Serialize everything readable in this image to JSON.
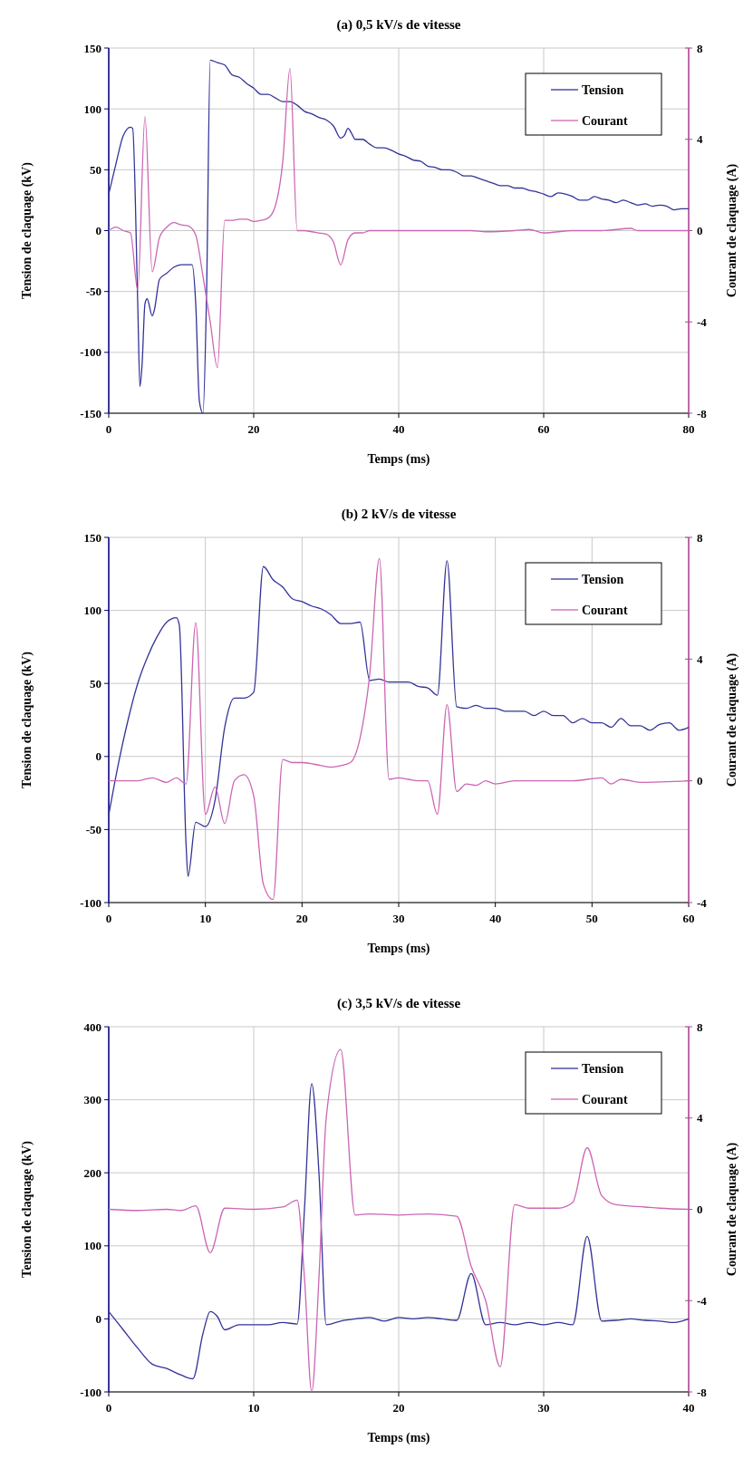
{
  "chart_data": [
    {
      "type": "line",
      "title": "(a) 0,5 kV/s de vitesse",
      "xlabel": "Temps (ms)",
      "ylabel": "Tension de claquage (kV)",
      "y2label": "Courant de claquage (A)",
      "xlim": [
        0,
        80
      ],
      "xticks": [
        0,
        20,
        40,
        60,
        80
      ],
      "ylim": [
        -150,
        150
      ],
      "yticks": [
        -150,
        -100,
        -50,
        0,
        50,
        100,
        150
      ],
      "y2lim": [
        -8,
        8
      ],
      "y2ticks": [
        -8,
        -4,
        0,
        4,
        8
      ],
      "grid": true,
      "legend": "top right",
      "series": [
        {
          "name": "Tension",
          "color": "#333399",
          "x": [
            0,
            1,
            2,
            3,
            3.3,
            4,
            4.3,
            4.6,
            5,
            5.3,
            6,
            6.3,
            7,
            8,
            9,
            10,
            11.5,
            12,
            12.5,
            13,
            13.5,
            14,
            15,
            16,
            17,
            18,
            19,
            20,
            21,
            22,
            23,
            24,
            25,
            26,
            27,
            28,
            29,
            30,
            31,
            32,
            32.5,
            33,
            33.5,
            34,
            35,
            36,
            37,
            38,
            39,
            40,
            41,
            42,
            43,
            44,
            45,
            46,
            47,
            48,
            49,
            50,
            51,
            52,
            53,
            54,
            55,
            56,
            57,
            58,
            59,
            60,
            61,
            62,
            63,
            64,
            65,
            66,
            67,
            68,
            69,
            70,
            71,
            72,
            73,
            74,
            75,
            76,
            77,
            78,
            79,
            80
          ],
          "values": [
            30,
            55,
            78,
            85,
            84,
            -60,
            -128,
            -110,
            -60,
            -56,
            -70,
            -65,
            -40,
            -35,
            -30,
            -28,
            -28,
            -60,
            -140,
            -150,
            -50,
            140,
            138,
            136,
            128,
            126,
            121,
            117,
            112,
            112,
            109,
            106,
            106,
            103,
            98,
            96,
            93,
            91,
            86,
            76,
            78,
            84,
            80,
            75,
            75,
            71,
            68,
            68,
            66,
            63,
            61,
            58,
            57,
            53,
            52,
            50,
            50,
            48,
            45,
            45,
            43,
            41,
            39,
            37,
            37,
            35,
            35,
            33,
            32,
            30,
            28,
            31,
            30,
            28,
            25,
            25,
            28,
            26,
            25,
            23,
            25,
            23,
            21,
            22,
            20,
            21,
            20,
            17,
            18,
            18
          ]
        },
        {
          "name": "Courant",
          "color": "#cc66b3",
          "axis": "y2",
          "x": [
            0,
            1,
            2,
            3,
            4,
            5,
            6,
            7,
            8,
            9,
            10,
            11,
            12,
            13,
            14,
            15,
            16,
            17,
            18,
            19,
            20,
            21,
            22,
            23,
            24,
            25,
            26,
            27,
            28,
            29,
            30,
            31,
            32,
            33,
            34,
            35,
            36,
            40,
            44,
            48,
            50,
            52,
            56,
            58,
            60,
            64,
            68,
            72,
            73,
            76,
            80
          ],
          "values": [
            0,
            0.15,
            0,
            -0.1,
            -2.6,
            5,
            -1.8,
            -0.3,
            0.15,
            0.35,
            0.25,
            0.2,
            -0.2,
            -2,
            -4,
            -6,
            0.45,
            0.45,
            0.5,
            0.5,
            0.4,
            0.45,
            0.55,
            1.1,
            3,
            7.1,
            0,
            0,
            -0.05,
            -0.1,
            -0.15,
            -0.5,
            -1.5,
            -0.4,
            -0.1,
            -0.1,
            0,
            0,
            0,
            0,
            0,
            -0.05,
            0,
            0.05,
            -0.1,
            0,
            0,
            0.1,
            0,
            0,
            0
          ]
        }
      ]
    },
    {
      "type": "line",
      "title": "(b) 2 kV/s de vitesse",
      "xlabel": "Temps (ms)",
      "ylabel": "Tension de claquage (kV)",
      "y2label": "Courant de claquage (A)",
      "xlim": [
        0,
        60
      ],
      "xticks": [
        0,
        10,
        20,
        30,
        40,
        50,
        60
      ],
      "ylim": [
        -100,
        150
      ],
      "yticks": [
        -100,
        -50,
        0,
        50,
        100,
        150
      ],
      "y2lim": [
        -4,
        8
      ],
      "y2ticks": [
        -4,
        0,
        4,
        8
      ],
      "grid": true,
      "legend": "top right",
      "series": [
        {
          "name": "Tension",
          "color": "#333399",
          "x": [
            0,
            1,
            2,
            3,
            4,
            5,
            6,
            7,
            7.3,
            8,
            8.2,
            9,
            10,
            11,
            12,
            13,
            14,
            15,
            16,
            17,
            18,
            19,
            20,
            21,
            22,
            23,
            24,
            25,
            26,
            27,
            28,
            29,
            30,
            31,
            32,
            33,
            34,
            35,
            36,
            37,
            38,
            39,
            40,
            41,
            42,
            43,
            44,
            45,
            46,
            47,
            48,
            49,
            50,
            51,
            52,
            53,
            54,
            55,
            56,
            57,
            58,
            59,
            60
          ],
          "values": [
            -40,
            -5,
            25,
            50,
            68,
            82,
            92,
            95,
            90,
            -60,
            -82,
            -45,
            -48,
            -30,
            20,
            40,
            40,
            44,
            130,
            121,
            116,
            108,
            106,
            103,
            101,
            97,
            91,
            91,
            92,
            52,
            53,
            51,
            51,
            51,
            48,
            47,
            42,
            134,
            34,
            33,
            35,
            33,
            33,
            31,
            31,
            31,
            28,
            31,
            28,
            28,
            23,
            26,
            23,
            23,
            20,
            26,
            21,
            21,
            18,
            22,
            23,
            18,
            20
          ]
        },
        {
          "name": "Courant",
          "color": "#cc66b3",
          "axis": "y2",
          "x": [
            0,
            3,
            4.5,
            6,
            7,
            8,
            9,
            10,
            11,
            12,
            13,
            14,
            15,
            16,
            17,
            18,
            19,
            20,
            22,
            23,
            24,
            25,
            26,
            27,
            28,
            29,
            30,
            31,
            32,
            33,
            34,
            35,
            36,
            37,
            38,
            39,
            40,
            42,
            45,
            48,
            51,
            52,
            53,
            55,
            60
          ],
          "values": [
            0,
            0,
            0.1,
            -0.05,
            0.1,
            -0.1,
            5.2,
            -1.1,
            -0.2,
            -1.4,
            0,
            0.2,
            -0.5,
            -3.4,
            -3.9,
            0.7,
            0.6,
            0.6,
            0.5,
            0.45,
            0.5,
            0.6,
            1.4,
            3.5,
            7.3,
            0.05,
            0.1,
            0.05,
            0,
            0,
            -1.1,
            2.5,
            -0.35,
            -0.1,
            -0.15,
            0,
            -0.1,
            0,
            0,
            0,
            0.1,
            -0.1,
            0.05,
            -0.05,
            0
          ]
        }
      ]
    },
    {
      "type": "line",
      "title": "(c) 3,5 kV/s de vitesse",
      "xlabel": "Temps (ms)",
      "ylabel": "Tension de claquage (kV)",
      "y2label": "Courant de claquage (A)",
      "xlim": [
        0,
        40
      ],
      "xticks": [
        0,
        10,
        20,
        30,
        40
      ],
      "ylim": [
        -100,
        400
      ],
      "yticks": [
        -100,
        0,
        100,
        200,
        300,
        400
      ],
      "y2lim": [
        -8,
        8
      ],
      "y2ticks": [
        -8,
        -4,
        0,
        4,
        8
      ],
      "grid": true,
      "legend": "top right",
      "series": [
        {
          "name": "Tension",
          "color": "#333399",
          "x": [
            0,
            1,
            2,
            3,
            4,
            5,
            5.8,
            6.5,
            7,
            7.5,
            8,
            9,
            10,
            11,
            12,
            13,
            13.5,
            14,
            14.5,
            15,
            16,
            17,
            18,
            19,
            20,
            21,
            22,
            23,
            24,
            25,
            26,
            27,
            28,
            29,
            30,
            31,
            32,
            33,
            34,
            35,
            36,
            37,
            38,
            39,
            40
          ],
          "values": [
            10,
            -15,
            -40,
            -62,
            -68,
            -77,
            -82,
            -20,
            10,
            3,
            -15,
            -8,
            -8,
            -8,
            -5,
            -7,
            150,
            322,
            200,
            -8,
            -3,
            0,
            2,
            -3,
            2,
            0,
            2,
            0,
            -2,
            62,
            -8,
            -5,
            -8,
            -5,
            -8,
            -5,
            -8,
            113,
            -3,
            -2,
            0,
            -2,
            -3,
            -5,
            0
          ]
        },
        {
          "name": "Courant",
          "color": "#cc66b3",
          "axis": "y2",
          "x": [
            0,
            2,
            4,
            5,
            6,
            7,
            8,
            10,
            12,
            13,
            13.5,
            14,
            14.5,
            15,
            16,
            17,
            18,
            20,
            22,
            24,
            25,
            26,
            27,
            28,
            29,
            31,
            32,
            33,
            34,
            35,
            37,
            38,
            40
          ],
          "values": [
            0,
            -0.05,
            0,
            -0.05,
            0.15,
            -1.9,
            0.05,
            0,
            0.1,
            0.4,
            -3,
            -8,
            -3,
            4,
            7,
            -0.25,
            -0.2,
            -0.25,
            -0.2,
            -0.3,
            -2.5,
            -4,
            -6.9,
            0.2,
            0.05,
            0.05,
            0.3,
            2.7,
            0.6,
            0.2,
            0.1,
            0.05,
            0
          ]
        }
      ]
    }
  ]
}
